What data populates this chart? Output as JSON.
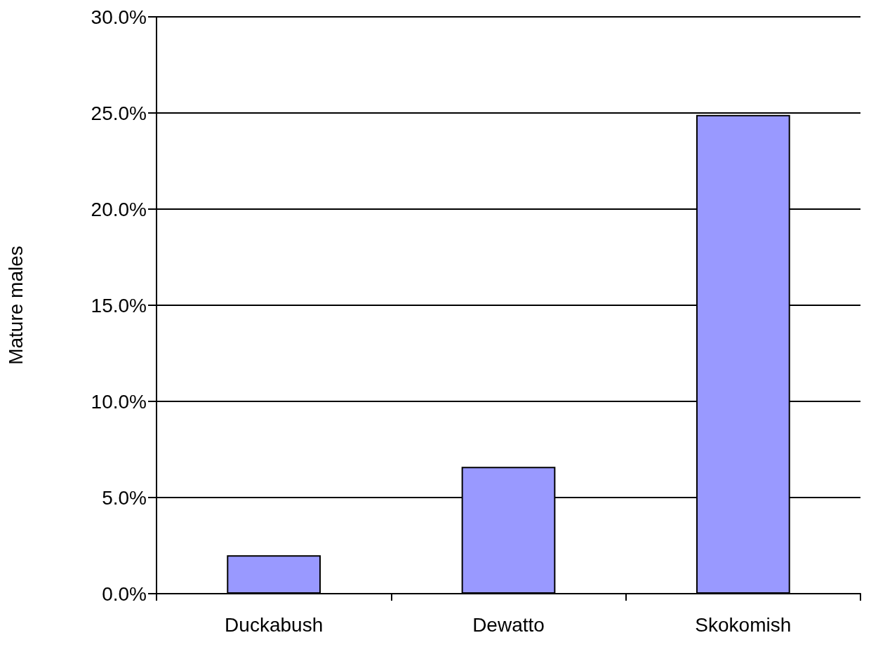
{
  "chart_data": {
    "type": "bar",
    "ylabel": "Mature males",
    "categories": [
      "Duckabush",
      "Dewatto",
      "Skokomish"
    ],
    "values": [
      2.0,
      6.6,
      24.9
    ],
    "color": "#9999ff",
    "ylim": [
      0,
      30
    ],
    "yticks": [
      {
        "value": 0,
        "label": "0.0%"
      },
      {
        "value": 5,
        "label": "5.0%"
      },
      {
        "value": 10,
        "label": "10.0%"
      },
      {
        "value": 15,
        "label": "15.0%"
      },
      {
        "value": 20,
        "label": "20.0%"
      },
      {
        "value": 25,
        "label": "25.0%"
      },
      {
        "value": 30,
        "label": "30.0%"
      }
    ],
    "grid": "y"
  }
}
